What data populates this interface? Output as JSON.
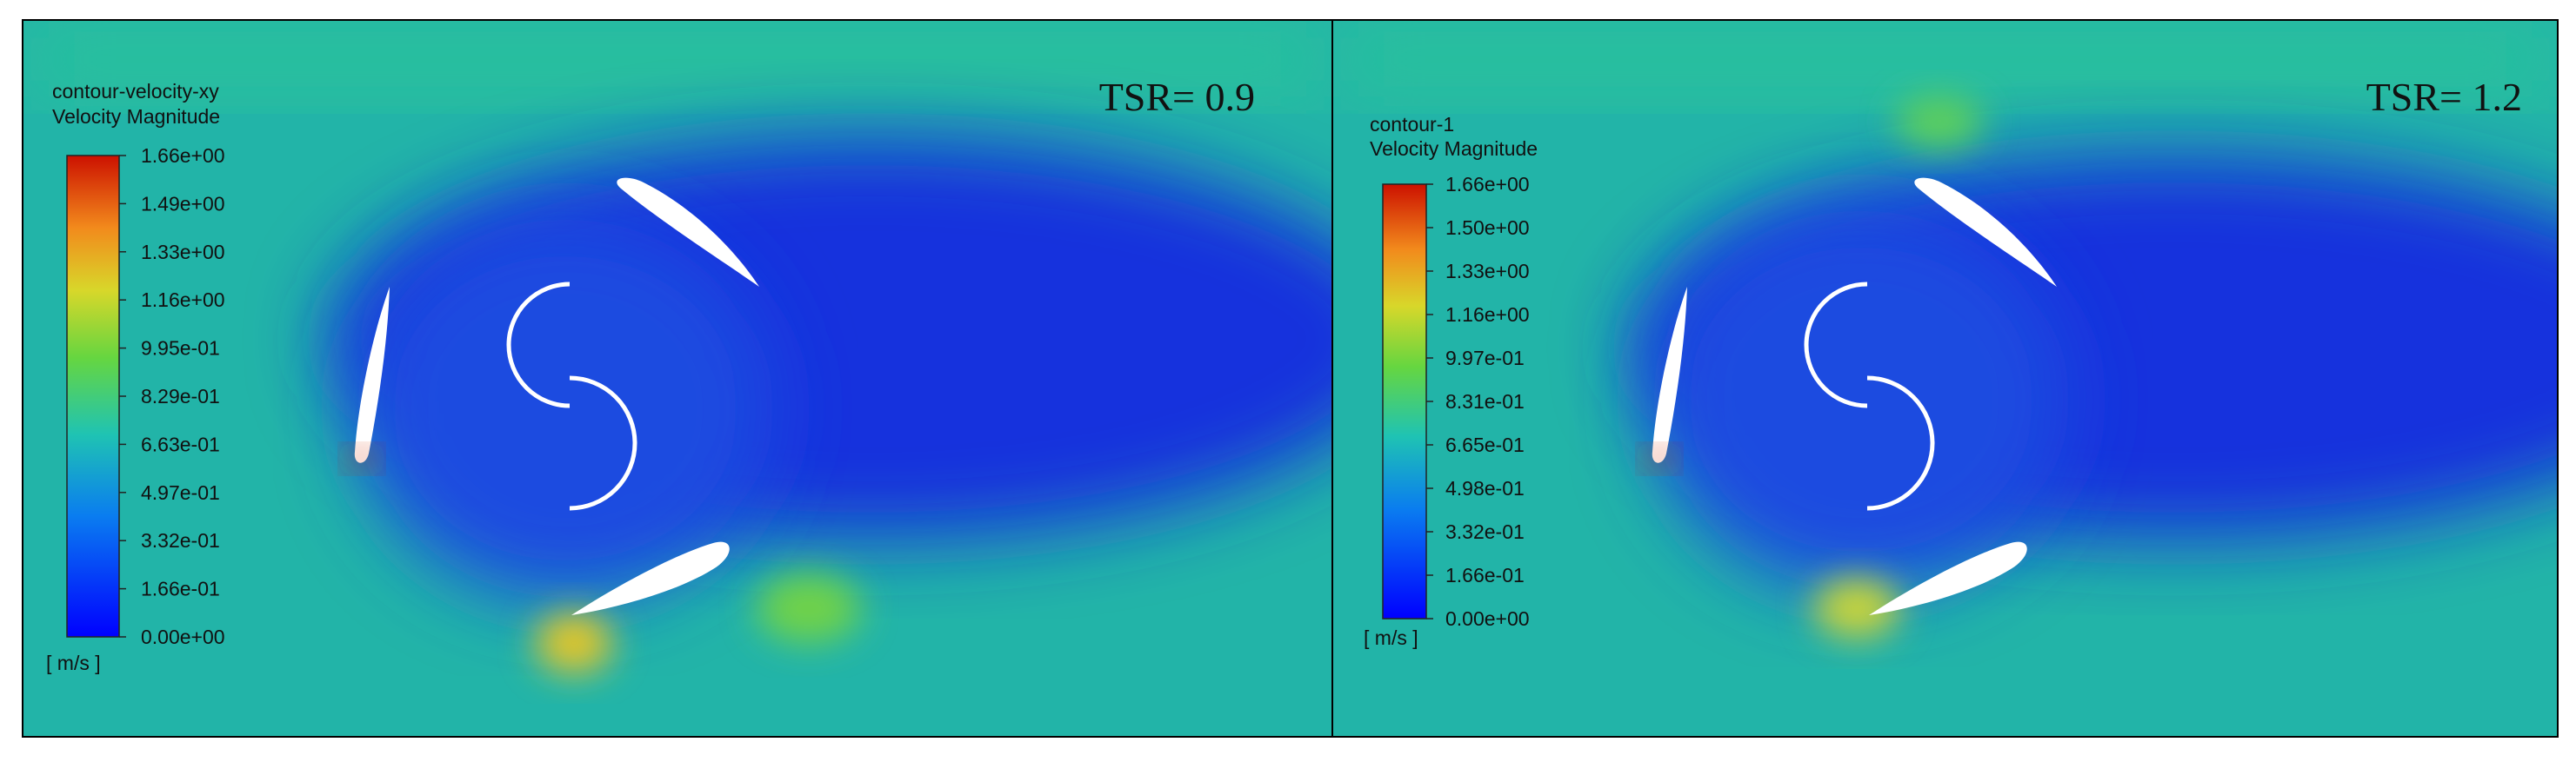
{
  "panels": [
    {
      "legend": {
        "title": "contour-velocity-xy",
        "quantity": "Velocity Magnitude",
        "ticks": [
          "1.66e+00",
          "1.49e+00",
          "1.33e+00",
          "1.16e+00",
          "9.95e-01",
          "8.29e-01",
          "6.63e-01",
          "4.97e-01",
          "3.32e-01",
          "1.66e-01",
          "0.00e+00"
        ],
        "unit": "[ m/s ]"
      },
      "label": "TSR= 0.9"
    },
    {
      "legend": {
        "title": "contour-1",
        "quantity": "Velocity Magnitude",
        "ticks": [
          "1.66e+00",
          "1.50e+00",
          "1.33e+00",
          "1.16e+00",
          "9.97e-01",
          "8.31e-01",
          "6.65e-01",
          "4.98e-01",
          "3.32e-01",
          "1.66e-01",
          "0.00e+00"
        ],
        "unit": "[ m/s ]"
      },
      "label": "TSR= 1.2"
    }
  ]
}
